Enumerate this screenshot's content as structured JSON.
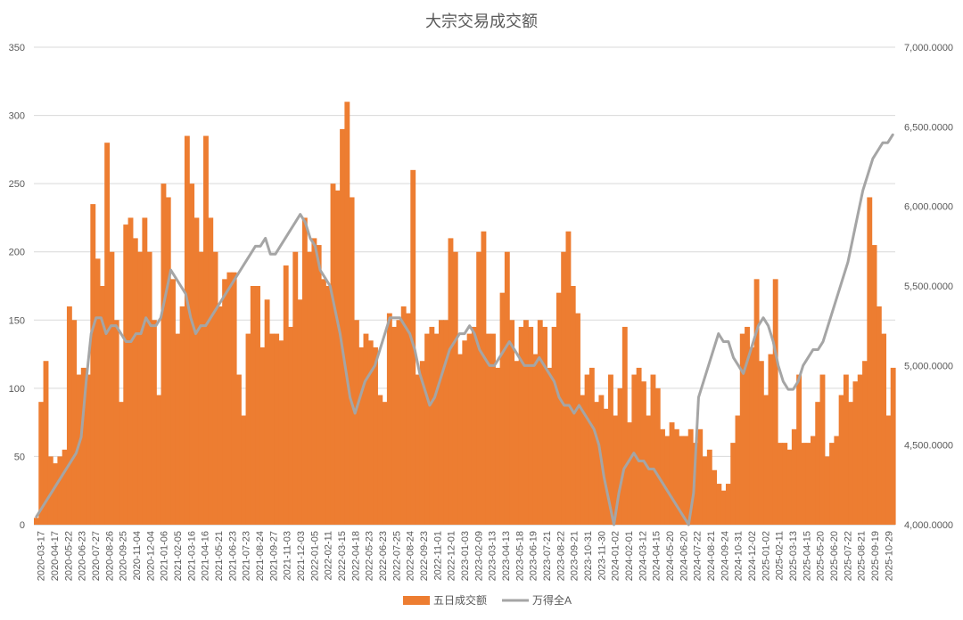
{
  "chart_data": {
    "type": "bar+line",
    "title": "大宗交易成交额",
    "x_tick_labels": [
      "2020-03-17",
      "2020-04-17",
      "2020-05-22",
      "2020-06-23",
      "2020-07-27",
      "2020-08-26",
      "2020-09-25",
      "2020-11-04",
      "2020-12-04",
      "2021-01-06",
      "2021-02-05",
      "2021-03-16",
      "2021-04-16",
      "2021-05-21",
      "2021-06-23",
      "2021-07-23",
      "2021-08-24",
      "2021-09-27",
      "2021-11-03",
      "2021-12-03",
      "2022-01-05",
      "2022-02-11",
      "2022-03-15",
      "2022-04-18",
      "2022-05-23",
      "2022-06-23",
      "2022-07-25",
      "2022-08-24",
      "2022-09-23",
      "2022-11-01",
      "2022-12-01",
      "2023-01-03",
      "2023-02-09",
      "2023-03-13",
      "2023-04-13",
      "2023-05-18",
      "2023-06-19",
      "2023-07-21",
      "2023-08-22",
      "2023-09-21",
      "2023-10-31",
      "2023-11-30",
      "2024-01-02",
      "2024-02-01",
      "2024-03-12",
      "2024-04-15",
      "2024-05-20",
      "2024-06-20",
      "2024-07-22",
      "2024-08-21",
      "2024-09-24",
      "2024-10-31",
      "2024-12-02",
      "2025-01-02",
      "2025-02-11",
      "2025-03-13",
      "2025-04-15",
      "2025-05-20",
      "2025-06-20",
      "2025-07-22",
      "2025-08-21",
      "2025-09-19",
      "2025-10-29"
    ],
    "left_axis": {
      "ylim": [
        0,
        350
      ],
      "ticks": [
        "0",
        "50",
        "100",
        "150",
        "200",
        "250",
        "300",
        "350"
      ]
    },
    "right_axis": {
      "ylim": [
        4000,
        7000
      ],
      "ticks": [
        "4,000.0000",
        "4,500.0000",
        "5,000.0000",
        "5,500.0000",
        "6,000.0000",
        "6,500.0000",
        "7,000.0000"
      ]
    },
    "legend_position": "bottom-center",
    "gridlines": true,
    "series": [
      {
        "name": "五日成交额",
        "kind": "bar",
        "axis": "left",
        "color": "#ED7D31",
        "values": [
          5,
          90,
          120,
          50,
          45,
          50,
          55,
          160,
          150,
          110,
          115,
          110,
          235,
          195,
          175,
          280,
          200,
          150,
          90,
          220,
          225,
          210,
          200,
          225,
          200,
          150,
          95,
          250,
          240,
          180,
          140,
          160,
          285,
          250,
          225,
          200,
          285,
          225,
          200,
          160,
          180,
          185,
          185,
          110,
          80,
          140,
          175,
          175,
          130,
          165,
          140,
          140,
          135,
          190,
          145,
          200,
          165,
          225,
          200,
          210,
          205,
          180,
          175,
          250,
          245,
          290,
          310,
          240,
          150,
          130,
          140,
          135,
          130,
          95,
          90,
          155,
          145,
          150,
          160,
          155,
          260,
          110,
          120,
          140,
          145,
          140,
          150,
          150,
          210,
          200,
          125,
          135,
          140,
          145,
          200,
          215,
          140,
          140,
          115,
          170,
          200,
          150,
          120,
          145,
          150,
          145,
          125,
          150,
          145,
          115,
          145,
          170,
          200,
          215,
          175,
          155,
          95,
          110,
          115,
          90,
          95,
          85,
          110,
          80,
          100,
          145,
          75,
          110,
          115,
          105,
          80,
          110,
          100,
          70,
          65,
          75,
          70,
          65,
          65,
          70,
          60,
          70,
          50,
          55,
          40,
          30,
          25,
          30,
          60,
          80,
          140,
          145,
          130,
          180,
          120,
          95,
          125,
          180,
          60,
          60,
          55,
          70,
          110,
          60,
          60,
          65,
          90,
          110,
          50,
          60,
          65,
          95,
          110,
          90,
          105,
          110,
          120,
          240,
          205,
          160,
          140,
          80,
          115
        ]
      },
      {
        "name": "万得全A",
        "kind": "line",
        "axis": "right",
        "color": "#A5A5A5",
        "values": [
          4050,
          4100,
          4150,
          4200,
          4250,
          4300,
          4350,
          4400,
          4450,
          4550,
          4900,
          5200,
          5300,
          5300,
          5200,
          5250,
          5250,
          5200,
          5150,
          5150,
          5200,
          5200,
          5300,
          5250,
          5250,
          5300,
          5450,
          5600,
          5550,
          5500,
          5450,
          5300,
          5200,
          5250,
          5250,
          5300,
          5350,
          5400,
          5450,
          5500,
          5550,
          5600,
          5650,
          5700,
          5750,
          5750,
          5800,
          5700,
          5700,
          5750,
          5800,
          5850,
          5900,
          5950,
          5900,
          5800,
          5750,
          5600,
          5550,
          5500,
          5350,
          5200,
          5000,
          4800,
          4700,
          4800,
          4900,
          4950,
          5000,
          5100,
          5200,
          5300,
          5300,
          5300,
          5250,
          5200,
          5100,
          4950,
          4850,
          4750,
          4800,
          4900,
          5000,
          5100,
          5150,
          5200,
          5200,
          5250,
          5200,
          5100,
          5050,
          5000,
          5000,
          5050,
          5100,
          5150,
          5100,
          5050,
          5000,
          5000,
          5000,
          5050,
          5000,
          4950,
          4900,
          4800,
          4750,
          4750,
          4700,
          4750,
          4700,
          4650,
          4600,
          4500,
          4300,
          4150,
          4000,
          4200,
          4350,
          4400,
          4450,
          4400,
          4400,
          4350,
          4350,
          4300,
          4250,
          4200,
          4150,
          4100,
          4050,
          4000,
          4200,
          4800,
          4900,
          5000,
          5100,
          5200,
          5150,
          5150,
          5050,
          5000,
          4950,
          5050,
          5150,
          5250,
          5300,
          5250,
          5150,
          5000,
          4900,
          4850,
          4850,
          4900,
          5000,
          5050,
          5100,
          5100,
          5150,
          5250,
          5350,
          5450,
          5550,
          5650,
          5800,
          5950,
          6100,
          6200,
          6300,
          6350,
          6400,
          6400,
          6450
        ]
      }
    ]
  }
}
